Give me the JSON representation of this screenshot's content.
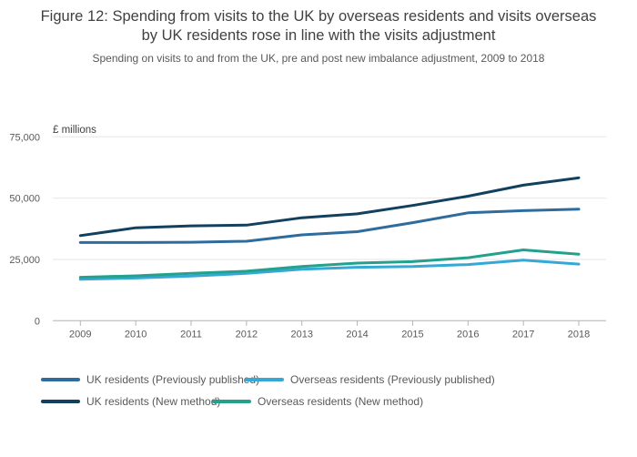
{
  "figure": {
    "title": "Figure 12: Spending from visits to the UK by overseas residents and visits overseas by UK residents rose in line with the visits adjustment",
    "subtitle": "Spending on visits to and from the UK, pre and post new imbalance adjustment, 2009 to 2018"
  },
  "chart_data": {
    "type": "line",
    "title": "Figure 12: Spending from visits to the UK by overseas residents and visits overseas by UK residents rose in line with the visits adjustment",
    "subtitle": "Spending on visits to and from the UK, pre and post new imbalance adjustment, 2009 to 2018",
    "unit_label": "£ millions",
    "x": [
      2009,
      2010,
      2011,
      2012,
      2013,
      2014,
      2015,
      2016,
      2017,
      2018
    ],
    "series": [
      {
        "name": "UK residents (Previously published)",
        "color": "#2e6c9e",
        "values": [
          31900,
          31900,
          32000,
          32400,
          35000,
          36300,
          40000,
          44000,
          44900,
          45500
        ]
      },
      {
        "name": "Overseas residents (Previously published)",
        "color": "#35a9d6",
        "values": [
          16900,
          17400,
          18200,
          19300,
          21000,
          21800,
          22100,
          22900,
          24700,
          23100
        ]
      },
      {
        "name": "UK residents (New method)",
        "color": "#12405f",
        "values": [
          34700,
          37900,
          38700,
          39000,
          42000,
          43600,
          47000,
          50800,
          55300,
          58300
        ]
      },
      {
        "name": "Overseas residents (New method)",
        "color": "#23a18c",
        "values": [
          17700,
          18300,
          19300,
          20200,
          22100,
          23500,
          24100,
          25700,
          28900,
          27100
        ]
      }
    ],
    "ylim": [
      0,
      75000
    ],
    "yticks": [
      {
        "value": 0,
        "label": "0"
      },
      {
        "value": 25000,
        "label": "25,000"
      },
      {
        "value": 50000,
        "label": "50,000"
      },
      {
        "value": 75000,
        "label": "75,000"
      }
    ],
    "grid": true,
    "legend_position": "bottom"
  },
  "legend": {
    "items": [
      {
        "label": "UK residents (Previously published)",
        "color": "#2e6c9e"
      },
      {
        "label": "Overseas residents (Previously published)",
        "color": "#35a9d6"
      },
      {
        "label": "UK residents (New method)",
        "color": "#12405f"
      },
      {
        "label": "Overseas residents (New method)",
        "color": "#23a18c"
      }
    ]
  },
  "colors": {
    "grid": "#e6e6e6",
    "axis": "#b3b3b3",
    "tick_label": "#595959",
    "unit_label": "#414042"
  }
}
